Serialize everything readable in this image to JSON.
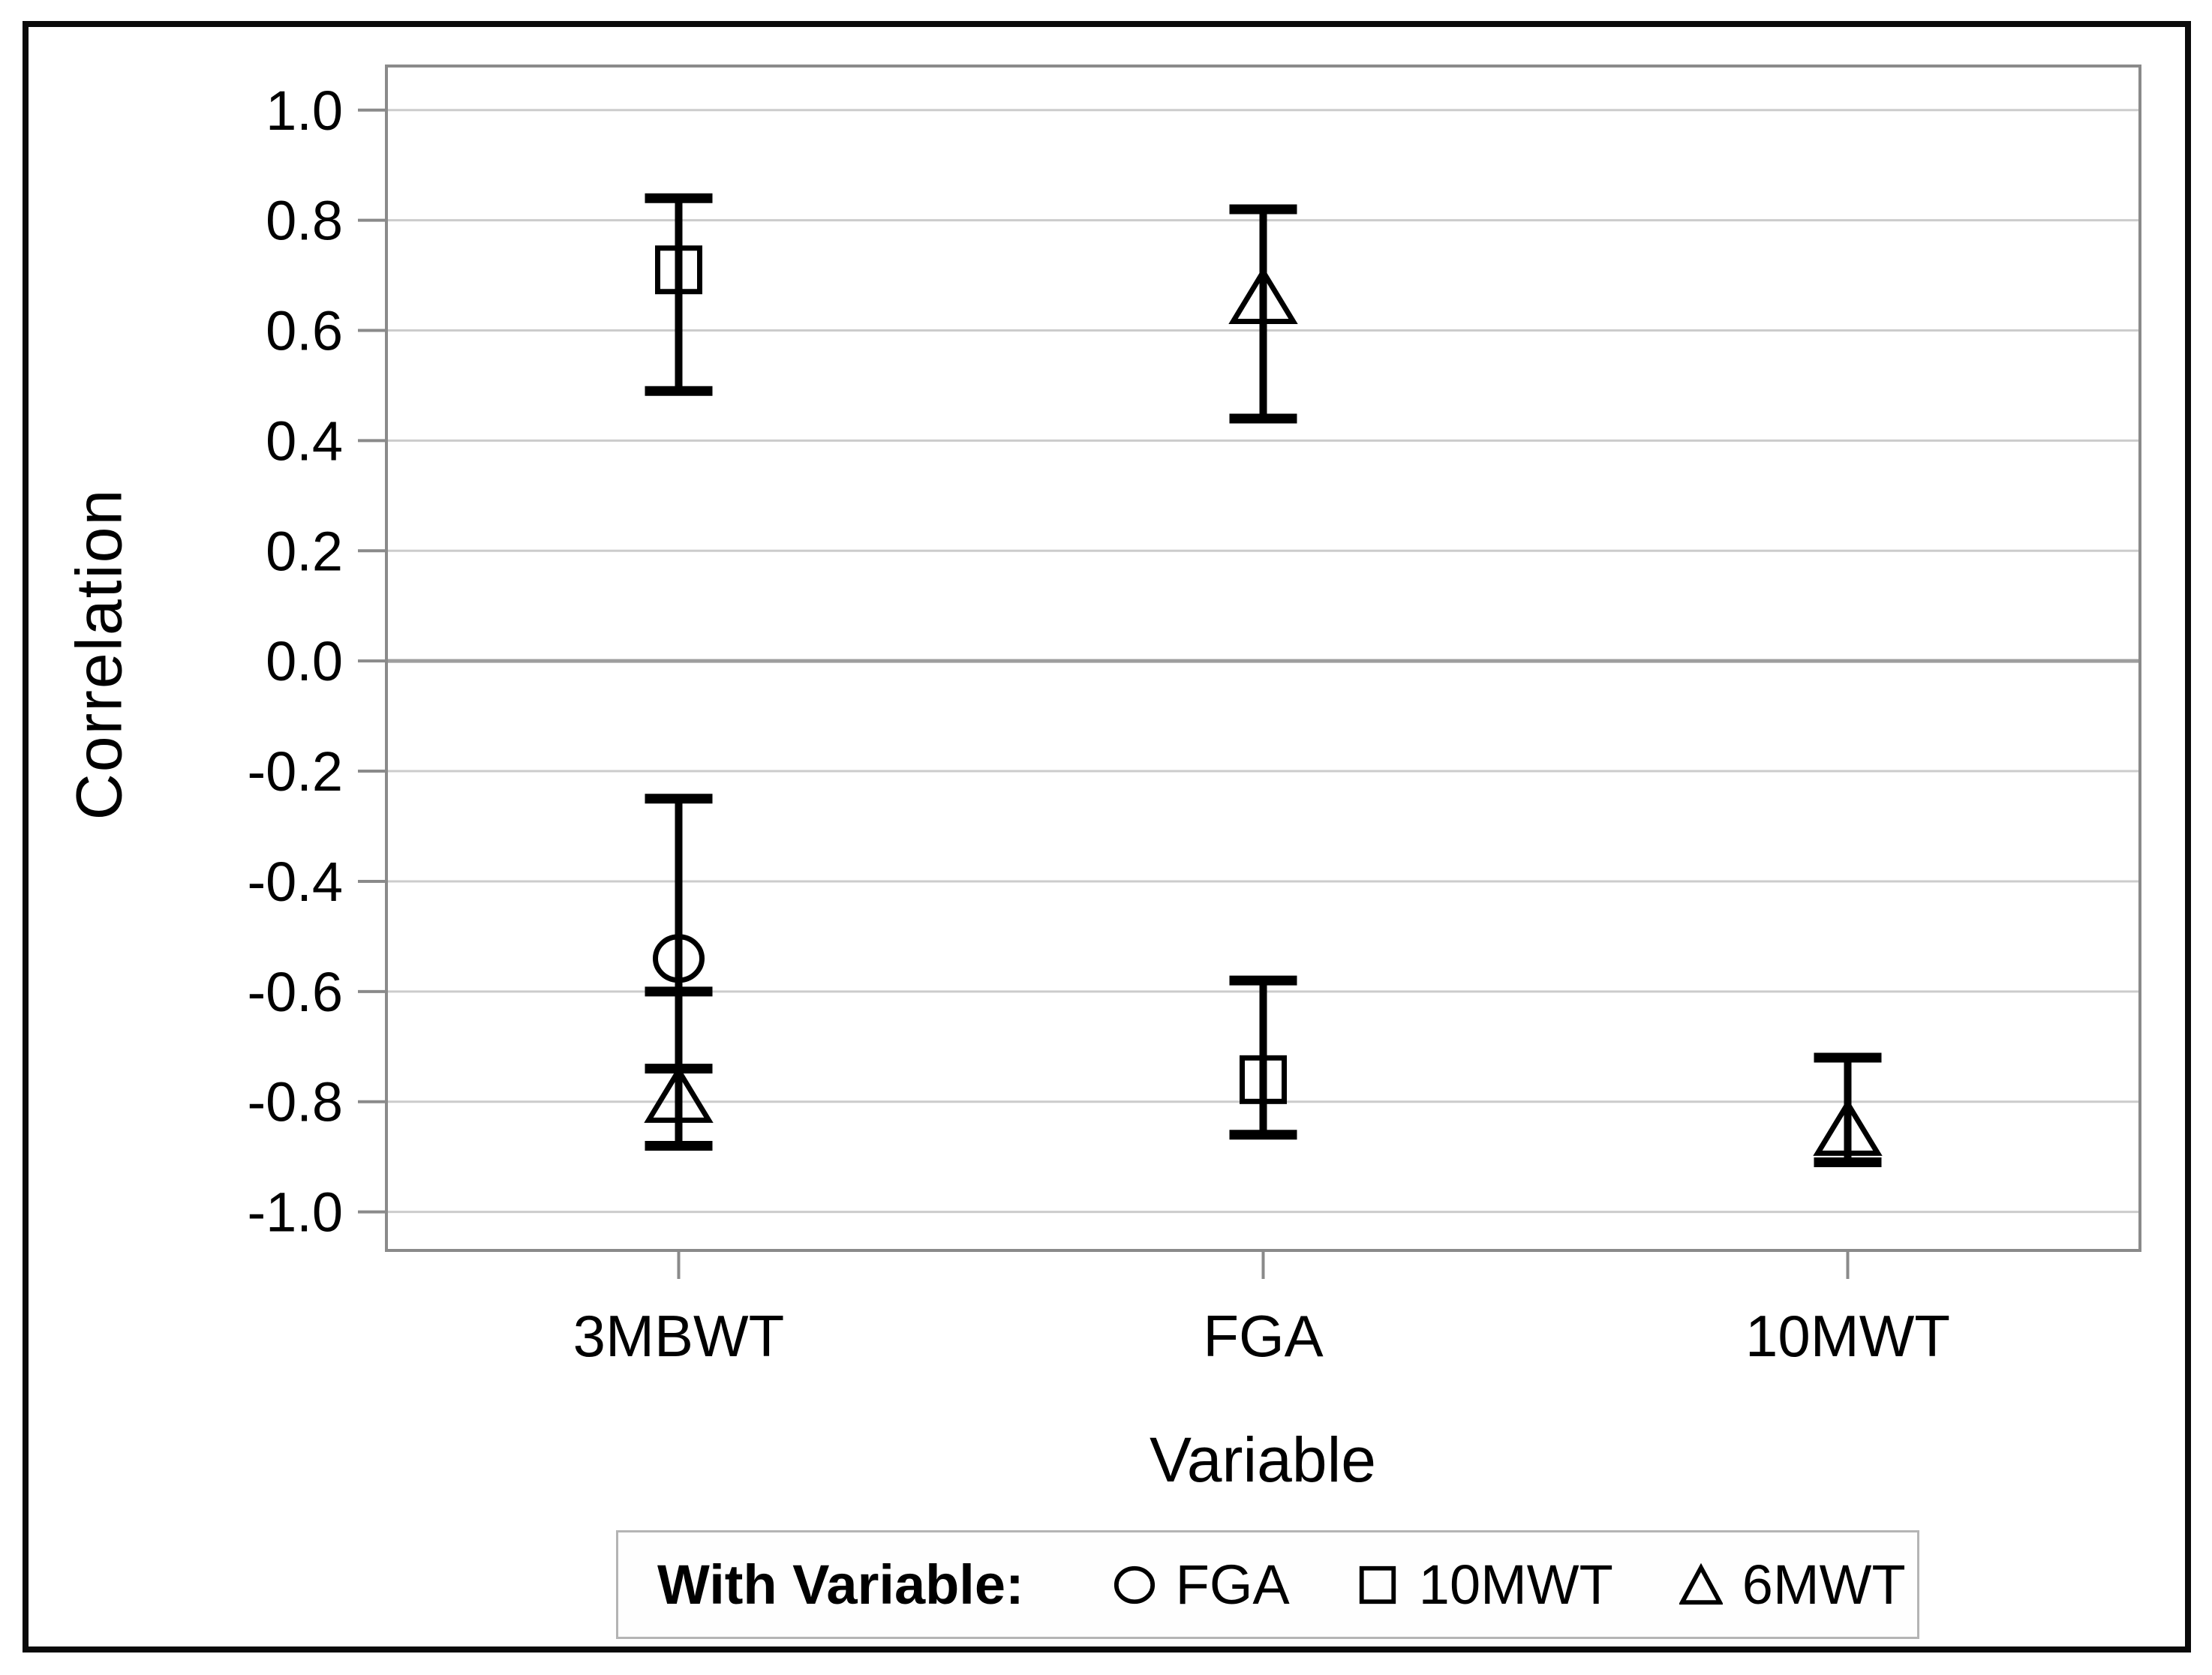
{
  "chart_data": {
    "type": "scatter",
    "xlabel": "Variable",
    "ylabel": "Correlation",
    "categories": [
      "3MBWT",
      "FGA",
      "10MWT"
    ],
    "ylim": [
      -1.07,
      1.08
    ],
    "yticks": [
      "1.0",
      "0.8",
      "0.6",
      "0.4",
      "0.2",
      "0.0",
      "-0.2",
      "-0.4",
      "-0.6",
      "-0.8",
      "-1.0"
    ],
    "grid": true,
    "legend_position": "bottom",
    "series": [
      {
        "name": "FGA",
        "marker": "circle",
        "points": [
          {
            "x": "3MBWT",
            "y": -0.54,
            "ci": [
              -0.74,
              -0.25
            ]
          }
        ]
      },
      {
        "name": "10MWT",
        "marker": "square",
        "points": [
          {
            "x": "3MBWT",
            "y": 0.71,
            "ci": [
              0.49,
              0.84
            ]
          },
          {
            "x": "FGA",
            "y": -0.76,
            "ci": [
              -0.86,
              -0.58
            ]
          }
        ]
      },
      {
        "name": "6MWT",
        "marker": "triangle",
        "points": [
          {
            "x": "3MBWT",
            "y": -0.79,
            "ci": [
              -0.88,
              -0.6
            ]
          },
          {
            "x": "FGA",
            "y": 0.66,
            "ci": [
              0.44,
              0.82
            ]
          },
          {
            "x": "10MWT",
            "y": -0.85,
            "ci": [
              -0.91,
              -0.72
            ]
          }
        ]
      }
    ]
  },
  "legend": {
    "title": "With Variable:",
    "items": [
      {
        "label": "FGA",
        "marker": "circle"
      },
      {
        "label": "10MWT",
        "marker": "square"
      },
      {
        "label": "6MWT",
        "marker": "triangle"
      }
    ]
  },
  "colors": {
    "data_black": "#000000",
    "grid_line": "#cccccc",
    "zero_line": "#9e9e9e",
    "axis_frame": "#8a8a8a",
    "legend_border": "#b4b4b4"
  }
}
